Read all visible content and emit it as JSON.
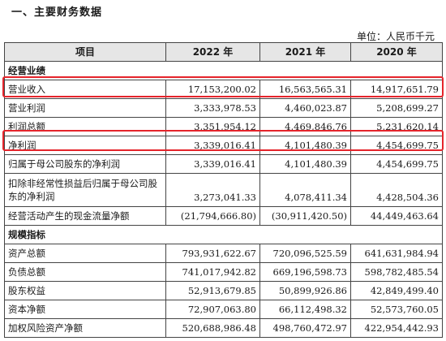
{
  "section_title": "一、主要财务数据",
  "unit_note": "单位：人民币千元",
  "table": {
    "headers": [
      "项目",
      "2022 年",
      "2021 年",
      "2020 年"
    ],
    "group_operating": "经营业绩",
    "rows_operating": [
      {
        "label": "营业收入",
        "v2022": "17,153,200.02",
        "v2021": "16,563,565.31",
        "v2020": "14,917,651.79"
      },
      {
        "label": "营业利润",
        "v2022": "3,333,978.53",
        "v2021": "4,460,023.87",
        "v2020": "5,208,699.27"
      },
      {
        "label": "利润总额",
        "v2022": "3,351,954.12",
        "v2021": "4,469,846.76",
        "v2020": "5,231,620.14"
      },
      {
        "label": "净利润",
        "v2022": "3,339,016.41",
        "v2021": "4,101,480.39",
        "v2020": "4,454,699.75"
      },
      {
        "label": "归属于母公司股东的净利润",
        "v2022": "3,339,016.41",
        "v2021": "4,101,480.39",
        "v2020": "4,454,699.75"
      },
      {
        "label": "扣除非经常性损益后归属于母公司股东的净利润",
        "v2022": "3,273,041.33",
        "v2021": "4,078,411.34",
        "v2020": "4,428,504.36"
      },
      {
        "label": "经营活动产生的现金流量净额",
        "v2022": "(21,794,666.80)",
        "v2021": "(30,911,420.50)",
        "v2020": "44,449,463.64"
      }
    ],
    "group_scale": "规模指标",
    "rows_scale": [
      {
        "label": "资产总额",
        "v2022": "793,931,622.67",
        "v2021": "720,096,525.59",
        "v2020": "641,631,984.94"
      },
      {
        "label": "负债总额",
        "v2022": "741,017,942.82",
        "v2021": "669,196,598.73",
        "v2020": "598,782,485.54"
      },
      {
        "label": "股东权益",
        "v2022": "52,913,679.85",
        "v2021": "50,899,926.86",
        "v2020": "42,849,499.40"
      },
      {
        "label": "资本净额",
        "v2022": "72,907,063.80",
        "v2021": "66,112,498.32",
        "v2020": "52,573,760.05"
      },
      {
        "label": "加权风险资产净额",
        "v2022": "520,688,986.48",
        "v2021": "498,760,472.97",
        "v2020": "422,954,442.93"
      }
    ]
  },
  "colors": {
    "highlight": "#e5242b",
    "header_bg": "#e6e6e6"
  }
}
